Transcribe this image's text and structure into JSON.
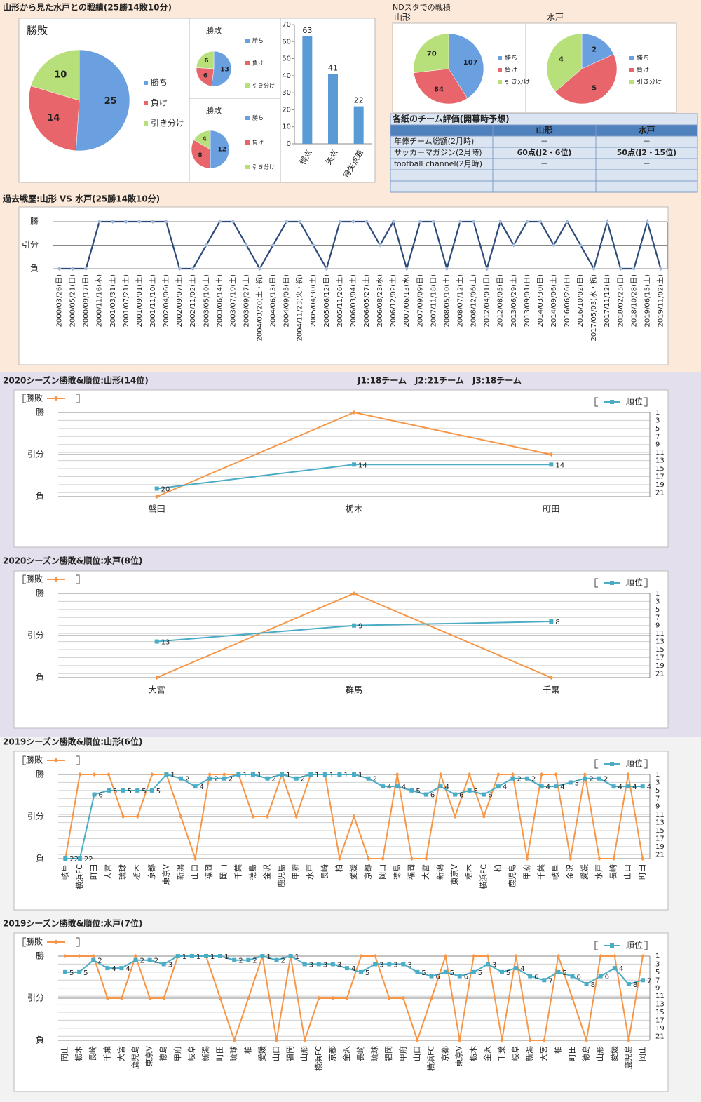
{
  "headings": {
    "record": "山形から見た水戸との戦績(25勝14敗10分)",
    "nd_stadium": "NDスタでの戦積"
  },
  "table": {
    "title": "各紙のチーム評価(開幕時予想)",
    "columns": [
      "山形",
      "水戸"
    ],
    "rows": [
      [
        "年俸チーム総額(2月時)",
        "－",
        "－"
      ],
      [
        "サッカーマガジン(2月時)",
        "60点(J2・6位)",
        "50点(J2・15位)"
      ],
      [
        "football channel(2月時)",
        "－",
        "－"
      ]
    ]
  },
  "chart_data": [
    {
      "type": "pie",
      "title": "勝敗",
      "categories": [
        "勝ち",
        "負け",
        "引き分け"
      ],
      "values": [
        25,
        14,
        10
      ],
      "colors": [
        "#6a9fe0",
        "#e8666b",
        "#b8e07a"
      ]
    },
    {
      "type": "pie",
      "title": "勝敗",
      "categories": [
        "勝ち",
        "負け",
        "引き分け"
      ],
      "values": [
        13,
        6,
        6
      ],
      "colors": [
        "#6a9fe0",
        "#e8666b",
        "#b8e07a"
      ]
    },
    {
      "type": "pie",
      "title": "勝敗",
      "categories": [
        "勝ち",
        "負け",
        "引き分け"
      ],
      "values": [
        12,
        8,
        4
      ],
      "colors": [
        "#6a9fe0",
        "#e8666b",
        "#b8e07a"
      ]
    },
    {
      "type": "bar",
      "categories": [
        "得点",
        "失点",
        "得失点差"
      ],
      "values": [
        63,
        41,
        22
      ],
      "color": "#5b9bd5",
      "ylim": [
        0,
        70
      ],
      "yticks": [
        0,
        10,
        20,
        30,
        40,
        50,
        60,
        70
      ]
    },
    {
      "type": "pie",
      "title": "山形",
      "categories": [
        "勝ち",
        "負け",
        "引き分け"
      ],
      "values": [
        107,
        84,
        70
      ],
      "colors": [
        "#6a9fe0",
        "#e8666b",
        "#b8e07a"
      ]
    },
    {
      "type": "pie",
      "title": "水戸",
      "categories": [
        "勝ち",
        "負け",
        "引き分け"
      ],
      "values": [
        2,
        5,
        4
      ],
      "colors": [
        "#6a9fe0",
        "#e8666b",
        "#b8e07a"
      ]
    },
    {
      "type": "line",
      "title": "過去戦歴:山形 VS 水戸(25勝14敗10分)",
      "categories": [
        "2000/03/26(日)",
        "2000/05/21(日)",
        "2000/09/17(日)",
        "2000/11/16(木)",
        "2001/03/31(土)",
        "2001/07/21(土)",
        "2001/09/01(土)",
        "2001/11/10(土)",
        "2002/04/06(土)",
        "2002/09/07(土)",
        "2002/11/02(土)",
        "2003/05/10(土)",
        "2003/06/14(土)",
        "2003/07/19(土)",
        "2003/09/27(土)",
        "2004/03/20(土・祝)",
        "2004/06/13(日)",
        "2004/09/05(日)",
        "2004/11/23(火・祝)",
        "2005/04/30(土)",
        "2005/06/12(日)",
        "2005/11/26(土)",
        "2006/03/04(土)",
        "2006/05/27(土)",
        "2006/08/23(水)",
        "2006/12/02(土)",
        "2007/06/13(水)",
        "2007/09/09(日)",
        "2007/11/18(日)",
        "2008/05/10(土)",
        "2008/07/12(土)",
        "2008/12/06(土)",
        "2012/04/01(日)",
        "2012/08/05(日)",
        "2013/06/29(土)",
        "2013/09/01(日)",
        "2014/03/30(日)",
        "2014/09/06(土)",
        "2016/06/26(日)",
        "2016/10/02(日)",
        "2017/05/03(水・祝)",
        "2017/11/12(日)",
        "2018/02/25(日)",
        "2018/10/28(日)",
        "2019/06/15(土)",
        "2019/11/02(土)"
      ],
      "values": [
        0,
        0,
        0,
        2,
        2,
        2,
        2,
        2,
        2,
        0,
        0,
        1,
        2,
        2,
        1,
        0,
        1,
        2,
        2,
        1,
        0,
        2,
        2,
        2,
        1,
        2,
        0,
        2,
        2,
        0,
        2,
        2,
        0,
        2,
        1,
        2,
        2,
        1,
        2,
        1,
        0,
        2,
        0,
        0,
        2,
        0
      ],
      "color": "#2e4a7a",
      "ylim": [
        0,
        2
      ],
      "yticks": [
        {
          "value": 0,
          "label": "負"
        },
        {
          "value": 1,
          "label": "引分"
        },
        {
          "value": 2,
          "label": "勝"
        }
      ],
      "grid": true
    },
    {
      "type": "line",
      "title": "2020シーズン勝敗&順位:山形(14位)",
      "annotation": "J1:18チーム　J2:21チーム　J3:18チーム",
      "categories": [
        "磐田",
        "栃木",
        "町田"
      ],
      "series": [
        {
          "name": "勝敗",
          "color": "#f79646",
          "values": [
            0,
            2,
            1
          ]
        },
        {
          "name": "順位",
          "color": "#4bacc6",
          "axis": "y2",
          "values": [
            20,
            14,
            14
          ]
        }
      ],
      "ylim": [
        0,
        2
      ],
      "yticks": [
        {
          "value": 0,
          "label": "負"
        },
        {
          "value": 1,
          "label": "引分"
        },
        {
          "value": 2,
          "label": "勝"
        }
      ],
      "y2lim": [
        22,
        1
      ],
      "y2ticks": [
        1,
        3,
        5,
        7,
        9,
        11,
        13,
        15,
        17,
        19,
        21
      ],
      "grid": true
    },
    {
      "type": "line",
      "title": "2020シーズン勝敗&順位:水戸(8位)",
      "categories": [
        "大宮",
        "群馬",
        "千葉"
      ],
      "series": [
        {
          "name": "勝敗",
          "color": "#f79646",
          "values": [
            0,
            2,
            0
          ]
        },
        {
          "name": "順位",
          "color": "#4bacc6",
          "axis": "y2",
          "values": [
            13,
            9,
            8
          ]
        }
      ],
      "ylim": [
        0,
        2
      ],
      "yticks": [
        {
          "value": 0,
          "label": "負"
        },
        {
          "value": 1,
          "label": "引分"
        },
        {
          "value": 2,
          "label": "勝"
        }
      ],
      "y2lim": [
        22,
        1
      ],
      "y2ticks": [
        1,
        3,
        5,
        7,
        9,
        11,
        13,
        15,
        17,
        19,
        21
      ],
      "grid": true
    },
    {
      "type": "line",
      "title": "2019シーズン勝敗&順位:山形(6位)",
      "categories": [
        "岐阜",
        "横浜FC",
        "町田",
        "大宮",
        "琉球",
        "栃木",
        "京都",
        "東京V",
        "新潟",
        "山口",
        "福岡",
        "岡山",
        "千葉",
        "徳島",
        "金沢",
        "鹿児島",
        "甲府",
        "水戸",
        "長崎",
        "柏",
        "愛媛",
        "京都",
        "岡山",
        "徳島",
        "福岡",
        "大宮",
        "新潟",
        "東京V",
        "栃木",
        "横浜FC",
        "柏",
        "鹿児島",
        "甲府",
        "千葉",
        "岐阜",
        "金沢",
        "愛媛",
        "水戸",
        "長崎",
        "山口",
        "町田"
      ],
      "series": [
        {
          "name": "勝敗",
          "color": "#f79646",
          "values": [
            0,
            2,
            2,
            2,
            1,
            1,
            2,
            2,
            1,
            0,
            2,
            2,
            2,
            1,
            1,
            2,
            1,
            2,
            2,
            0,
            1,
            0,
            0,
            2,
            0,
            0,
            2,
            1,
            2,
            1,
            2,
            2,
            0,
            2,
            2,
            0,
            2,
            0,
            0,
            2,
            0
          ]
        },
        {
          "name": "順位",
          "color": "#4bacc6",
          "axis": "y2",
          "values": [
            22,
            22,
            6,
            5,
            5,
            5,
            5,
            1,
            2,
            4,
            2,
            2,
            1,
            1,
            2,
            1,
            2,
            1,
            1,
            1,
            1,
            2,
            4,
            4,
            5,
            6,
            4,
            6,
            5,
            6,
            4,
            2,
            2,
            4,
            4,
            3,
            2,
            2,
            4,
            4,
            4
          ]
        }
      ],
      "ylim": [
        0,
        2
      ],
      "yticks": [
        {
          "value": 0,
          "label": "負"
        },
        {
          "value": 1,
          "label": "引分"
        },
        {
          "value": 2,
          "label": "勝"
        }
      ],
      "y2lim": [
        22,
        1
      ],
      "y2ticks": [
        1,
        3,
        5,
        7,
        9,
        11,
        13,
        15,
        17,
        19,
        21
      ],
      "grid": true
    },
    {
      "type": "line",
      "title": "2019シーズン勝敗&順位:水戸(7位)",
      "categories": [
        "岡山",
        "栃木",
        "長崎",
        "千葉",
        "大宮",
        "鹿児島",
        "東京V",
        "徳島",
        "甲府",
        "岐阜",
        "新潟",
        "町田",
        "琉球",
        "柏",
        "愛媛",
        "山口",
        "福岡",
        "山形",
        "横浜FC",
        "京都",
        "金沢",
        "長崎",
        "琉球",
        "福岡",
        "甲府",
        "山口",
        "横浜FC",
        "京都",
        "東京V",
        "栃木",
        "金沢",
        "千葉",
        "岐阜",
        "新潟",
        "大宮",
        "柏",
        "町田",
        "徳島",
        "山形",
        "愛媛",
        "鹿児島",
        "岡山"
      ],
      "series": [
        {
          "name": "勝敗",
          "color": "#f79646",
          "values": [
            2,
            2,
            2,
            1,
            1,
            2,
            1,
            1,
            2,
            2,
            2,
            1,
            0,
            1,
            2,
            0,
            2,
            0,
            1,
            1,
            1,
            2,
            2,
            1,
            1,
            0,
            1,
            2,
            0,
            2,
            2,
            0,
            2,
            0,
            0,
            2,
            1,
            0,
            2,
            2,
            0,
            2
          ]
        },
        {
          "name": "順位",
          "color": "#4bacc6",
          "axis": "y2",
          "values": [
            5,
            5,
            2,
            4,
            4,
            2,
            2,
            3,
            1,
            1,
            1,
            1,
            2,
            2,
            1,
            2,
            1,
            3,
            3,
            3,
            4,
            5,
            3,
            3,
            3,
            5,
            6,
            5,
            6,
            5,
            3,
            5,
            4,
            6,
            7,
            5,
            6,
            8,
            6,
            4,
            8,
            7
          ]
        }
      ],
      "ylim": [
        0,
        2
      ],
      "yticks": [
        {
          "value": 0,
          "label": "負"
        },
        {
          "value": 1,
          "label": "引分"
        },
        {
          "value": 2,
          "label": "勝"
        }
      ],
      "y2lim": [
        22,
        1
      ],
      "y2ticks": [
        1,
        3,
        5,
        7,
        9,
        11,
        13,
        15,
        17,
        19,
        21
      ],
      "grid": true
    }
  ]
}
